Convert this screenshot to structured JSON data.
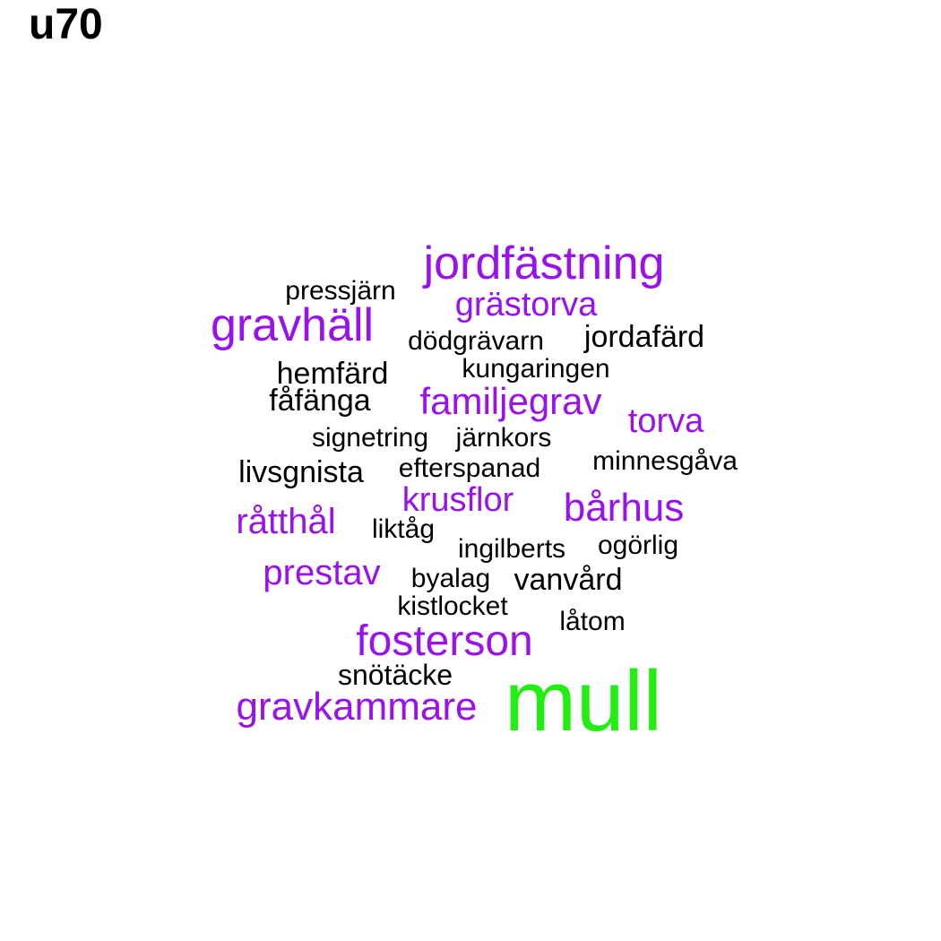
{
  "title": "u70",
  "colors": {
    "black": "#000000",
    "purple": "#9a11ee",
    "green": "#22ee11"
  },
  "words": [
    {
      "text": "mull",
      "color": "green"
    },
    {
      "text": "jordfästning",
      "color": "purple"
    },
    {
      "text": "gravhäll",
      "color": "purple"
    },
    {
      "text": "fosterson",
      "color": "purple"
    },
    {
      "text": "gravkammare",
      "color": "purple"
    },
    {
      "text": "familjegrav",
      "color": "purple"
    },
    {
      "text": "bårhus",
      "color": "purple"
    },
    {
      "text": "prestav",
      "color": "purple"
    },
    {
      "text": "råtthål",
      "color": "purple"
    },
    {
      "text": "grästorva",
      "color": "purple"
    },
    {
      "text": "krusflor",
      "color": "purple"
    },
    {
      "text": "torva",
      "color": "purple"
    },
    {
      "text": "jordafärd",
      "color": "black"
    },
    {
      "text": "hemfärd",
      "color": "black"
    },
    {
      "text": "vanvård",
      "color": "black"
    },
    {
      "text": "livsgnista",
      "color": "black"
    },
    {
      "text": "snötäcke",
      "color": "black"
    },
    {
      "text": "fåfänga",
      "color": "black"
    },
    {
      "text": "pressjärn",
      "color": "black"
    },
    {
      "text": "dödgrävarn",
      "color": "black"
    },
    {
      "text": "kungaringen",
      "color": "black"
    },
    {
      "text": "signetring",
      "color": "black"
    },
    {
      "text": "järnkors",
      "color": "black"
    },
    {
      "text": "efterspanad",
      "color": "black"
    },
    {
      "text": "minnesgåva",
      "color": "black"
    },
    {
      "text": "liktåg",
      "color": "black"
    },
    {
      "text": "ingilberts",
      "color": "black"
    },
    {
      "text": "ogörlig",
      "color": "black"
    },
    {
      "text": "byalag",
      "color": "black"
    },
    {
      "text": "kistlocket",
      "color": "black"
    },
    {
      "text": "låtom",
      "color": "black"
    }
  ]
}
